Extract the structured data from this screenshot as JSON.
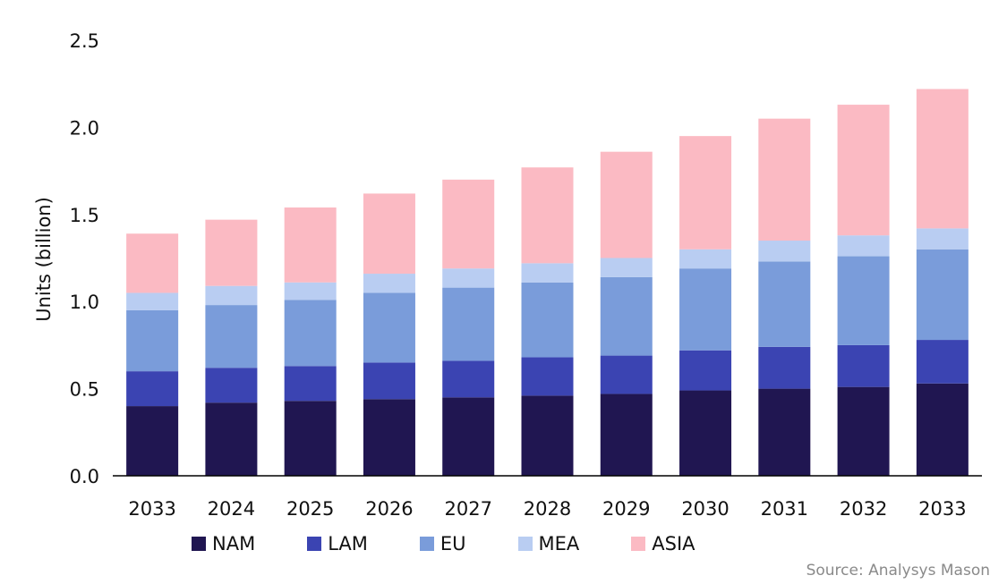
{
  "chart_data": {
    "type": "bar",
    "stacked": true,
    "title": "",
    "xlabel": "",
    "ylabel": "Units (billion)",
    "ylim": [
      0,
      2.5
    ],
    "yticks": [
      "0.0",
      "0.5",
      "1.0",
      "1.5",
      "2.0",
      "2.5"
    ],
    "categories": [
      "2033",
      "2024",
      "2025",
      "2026",
      "2027",
      "2028",
      "2029",
      "2030",
      "2031",
      "2032",
      "2033"
    ],
    "series": [
      {
        "name": "NAM",
        "color": "#201651",
        "values": [
          0.4,
          0.42,
          0.43,
          0.44,
          0.45,
          0.46,
          0.47,
          0.49,
          0.5,
          0.51,
          0.53
        ]
      },
      {
        "name": "LAM",
        "color": "#3b44b2",
        "values": [
          0.2,
          0.2,
          0.2,
          0.21,
          0.21,
          0.22,
          0.22,
          0.23,
          0.24,
          0.24,
          0.25
        ]
      },
      {
        "name": "EU",
        "color": "#7a9cda",
        "values": [
          0.35,
          0.36,
          0.38,
          0.4,
          0.42,
          0.43,
          0.45,
          0.47,
          0.49,
          0.51,
          0.52
        ]
      },
      {
        "name": "MEA",
        "color": "#b9cdf2",
        "values": [
          0.1,
          0.11,
          0.1,
          0.11,
          0.11,
          0.11,
          0.11,
          0.11,
          0.12,
          0.12,
          0.12
        ]
      },
      {
        "name": "ASIA",
        "color": "#fbbac3",
        "values": [
          0.34,
          0.38,
          0.43,
          0.46,
          0.51,
          0.55,
          0.61,
          0.65,
          0.7,
          0.75,
          0.8
        ]
      }
    ],
    "legend_position": "bottom",
    "grid": false,
    "source": "Source: Analysys Mason"
  }
}
